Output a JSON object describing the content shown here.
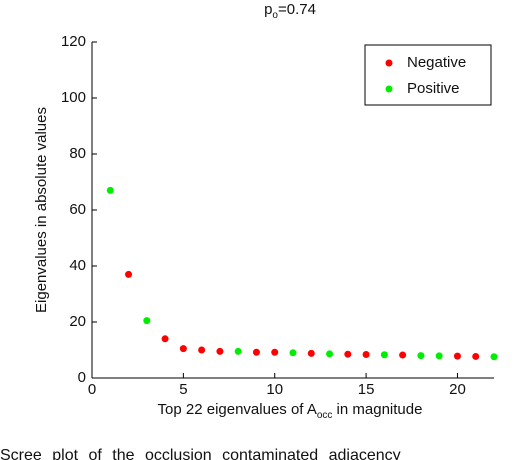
{
  "chart_data": {
    "type": "scatter",
    "title": [
      "p",
      "o",
      "=0.74"
    ],
    "xlabel": [
      "Top 22 eigenvalues of A",
      "occ",
      " in magnitude"
    ],
    "ylabel": "Eigenvalues in absolute values",
    "caption": "Scree plot of the occlusion contaminated adjacency",
    "xlim": [
      0,
      22
    ],
    "xticks": [
      0,
      5,
      10,
      15,
      20
    ],
    "ylim": [
      0,
      120
    ],
    "yticks": [
      0,
      20,
      40,
      60,
      80,
      100,
      120
    ],
    "legend": "upper-right",
    "series": [
      {
        "name": "Negative",
        "color": "#ff0000",
        "x": [
          2,
          4,
          5,
          6,
          7,
          9,
          10,
          12,
          14,
          15,
          17,
          20,
          21
        ],
        "values": [
          37,
          14,
          10.5,
          10,
          9.5,
          9.2,
          9.2,
          8.8,
          8.5,
          8.4,
          8.2,
          7.8,
          7.7
        ]
      },
      {
        "name": "Positive",
        "color": "#00ee00",
        "x": [
          1,
          3,
          8,
          11,
          13,
          16,
          18,
          19,
          22
        ],
        "values": [
          67,
          20.5,
          9.5,
          9,
          8.6,
          8.3,
          8,
          7.9,
          7.6
        ]
      }
    ]
  }
}
